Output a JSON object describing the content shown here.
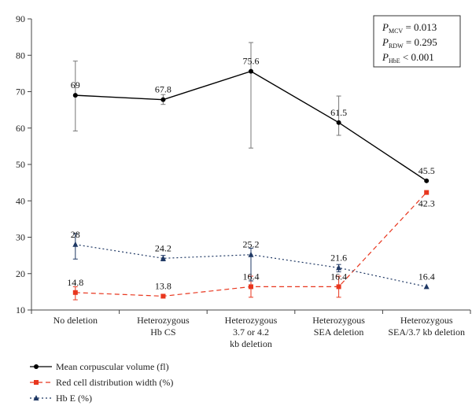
{
  "chart_data": {
    "type": "line",
    "categories": [
      [
        "No deletion"
      ],
      [
        "Heterozygous",
        "Hb CS"
      ],
      [
        "Heterozygous",
        "3.7 or 4.2",
        "kb deletion"
      ],
      [
        "Heterozygous",
        "SEA deletion"
      ],
      [
        "Heterozygous",
        "SEA/3.7 kb deletion"
      ]
    ],
    "ylim": [
      10,
      90
    ],
    "yticks": [
      10,
      20,
      30,
      40,
      50,
      60,
      70,
      80,
      90
    ],
    "series": [
      {
        "name": "Mean corpuscular volume (fl)",
        "values": [
          69,
          67.8,
          75.6,
          61.5,
          45.5
        ],
        "labels": [
          "69",
          "67.8",
          "75.6",
          "61.5",
          "45.5"
        ],
        "error": [
          [
            59.2,
            78.4
          ],
          [
            66.5,
            69.2
          ],
          [
            54.5,
            83.5
          ],
          [
            58,
            68.8
          ],
          null
        ],
        "color": "#000000",
        "line_style": "solid",
        "marker": "circle"
      },
      {
        "name": "Red cell distribution width (%)",
        "values": [
          14.8,
          13.8,
          16.4,
          16.4,
          42.3
        ],
        "labels": [
          "14.8",
          "13.8",
          "16.4",
          "16.4",
          "42.3"
        ],
        "error": [
          [
            12.8,
            16.4
          ],
          [
            13.3,
            14.3
          ],
          [
            13.5,
            19.3
          ],
          [
            13.5,
            19.3
          ],
          null
        ],
        "color": "#e8361e",
        "line_style": "dashed",
        "marker": "square"
      },
      {
        "name": "Hb E (%)",
        "values": [
          28,
          24.2,
          25.2,
          21.6,
          16.4
        ],
        "labels": [
          "28",
          "24.2",
          "25.2",
          "21.6",
          "16.4"
        ],
        "error": [
          [
            24,
            31
          ],
          [
            23.5,
            25
          ],
          [
            18,
            27
          ],
          [
            20.5,
            22.5
          ],
          null
        ],
        "color": "#1f3864",
        "line_style": "dotted",
        "marker": "triangle"
      }
    ],
    "annotations": [
      {
        "symbol": "P",
        "subscript": "MCV",
        "text": " = 0.013"
      },
      {
        "symbol": "P",
        "subscript": "RDW",
        "text": " = 0.295"
      },
      {
        "symbol": "P",
        "subscript": "HbE",
        "text": " < 0.001"
      }
    ],
    "legend_position": "bottom-left",
    "grid": false
  }
}
